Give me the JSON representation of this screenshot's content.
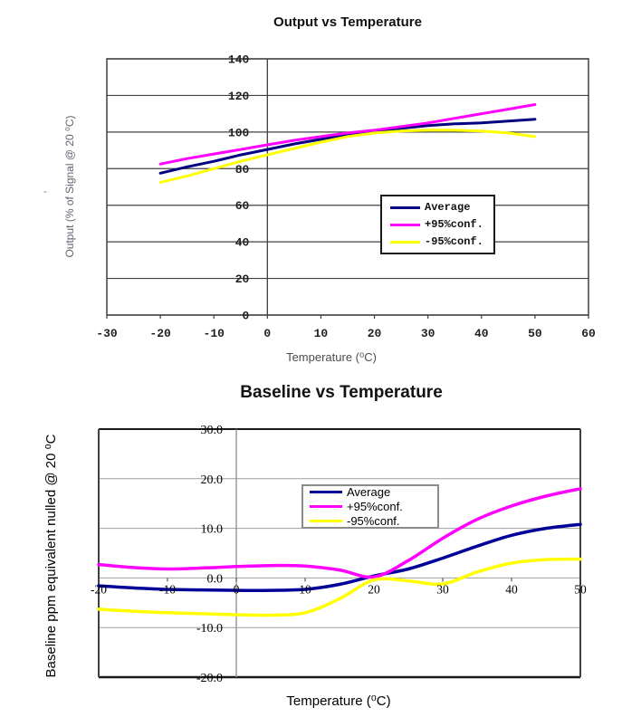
{
  "page": {
    "background": "#ffffff",
    "stray_dash": "-"
  },
  "chart_data": [
    {
      "type": "line",
      "title": "Output vs Temperature",
      "xlabel": "Temperature (⁰C)",
      "ylabel": "Output (% of Signal @ 20 ⁰C)",
      "xlim": [
        -30,
        60
      ],
      "ylim": [
        0,
        140
      ],
      "x_tick_values": [
        -30,
        -20,
        -10,
        0,
        10,
        20,
        30,
        40,
        50,
        60
      ],
      "x_tick_labels": [
        "-30",
        "-20",
        "-10",
        "0",
        "10",
        "20",
        "30",
        "40",
        "50",
        "60"
      ],
      "y_tick_values": [
        0,
        20,
        40,
        60,
        80,
        100,
        120,
        140
      ],
      "y_tick_labels": [
        "0",
        "20",
        "40",
        "60",
        "80",
        "100",
        "120",
        "140"
      ],
      "grid": "horizontal",
      "legend_position": "inside-right",
      "line_style": "straight",
      "x": [
        -20,
        -15,
        -10,
        -5,
        0,
        5,
        10,
        15,
        20,
        25,
        30,
        35,
        40,
        45,
        50
      ],
      "series": [
        {
          "name": "Average",
          "color": "#000080",
          "values": [
            77.5,
            81,
            84,
            87.5,
            90.5,
            93.5,
            96,
            98.5,
            100.5,
            102,
            103.5,
            104.5,
            105,
            106,
            107
          ]
        },
        {
          "name": "+95%conf.",
          "color": "#ff00ff",
          "values": [
            82.5,
            85.5,
            88,
            90.5,
            93,
            95.5,
            97.5,
            99.5,
            101,
            103,
            105,
            107.5,
            110,
            112.5,
            115
          ]
        },
        {
          "name": "-95%conf.",
          "color": "#ffff00",
          "values": [
            72.5,
            76,
            80,
            84,
            87.5,
            91,
            94.5,
            97.5,
            99.5,
            100.5,
            101,
            101,
            100.5,
            99.5,
            97.5
          ]
        }
      ]
    },
    {
      "type": "line",
      "title": "Baseline vs Temperature",
      "xlabel": "Temperature (⁰C)",
      "ylabel": "Baseline ppm equivalent nulled @ 20 ⁰C",
      "xlim": [
        -20,
        50
      ],
      "ylim": [
        -20,
        30
      ],
      "x_tick_values": [
        -20,
        -10,
        0,
        10,
        20,
        30,
        40,
        50
      ],
      "x_tick_labels": [
        "-20",
        "-10",
        "0",
        "10",
        "20",
        "30",
        "40",
        "50"
      ],
      "y_tick_values": [
        30,
        20,
        10,
        0,
        -10,
        -20
      ],
      "y_tick_labels": [
        "30.0",
        "20.0",
        "10.0",
        "0.0",
        "-10.0",
        "-20.0"
      ],
      "grid": "horizontal",
      "legend_position": "inside-top",
      "line_style": "smooth",
      "x": [
        -20,
        -15,
        -10,
        -5,
        0,
        5,
        10,
        15,
        20,
        25,
        30,
        35,
        40,
        45,
        50
      ],
      "series": [
        {
          "name": "Average",
          "color": "#000099",
          "values": [
            -1.6,
            -2.0,
            -2.3,
            -2.4,
            -2.5,
            -2.5,
            -2.3,
            -1.3,
            0.4,
            1.8,
            4.0,
            6.4,
            8.6,
            10.0,
            10.8
          ]
        },
        {
          "name": "+95%conf.",
          "color": "#ff00ff",
          "values": [
            2.7,
            2.1,
            1.8,
            2.0,
            2.3,
            2.5,
            2.4,
            1.6,
            0.2,
            3.5,
            8.0,
            11.8,
            14.5,
            16.5,
            18.0
          ]
        },
        {
          "name": "-95%conf.",
          "color": "#ffff00",
          "values": [
            -6.3,
            -6.7,
            -7.0,
            -7.2,
            -7.4,
            -7.5,
            -7.0,
            -4.2,
            -0.4,
            -0.6,
            -1.2,
            1.2,
            3.0,
            3.7,
            3.8
          ]
        }
      ]
    }
  ]
}
